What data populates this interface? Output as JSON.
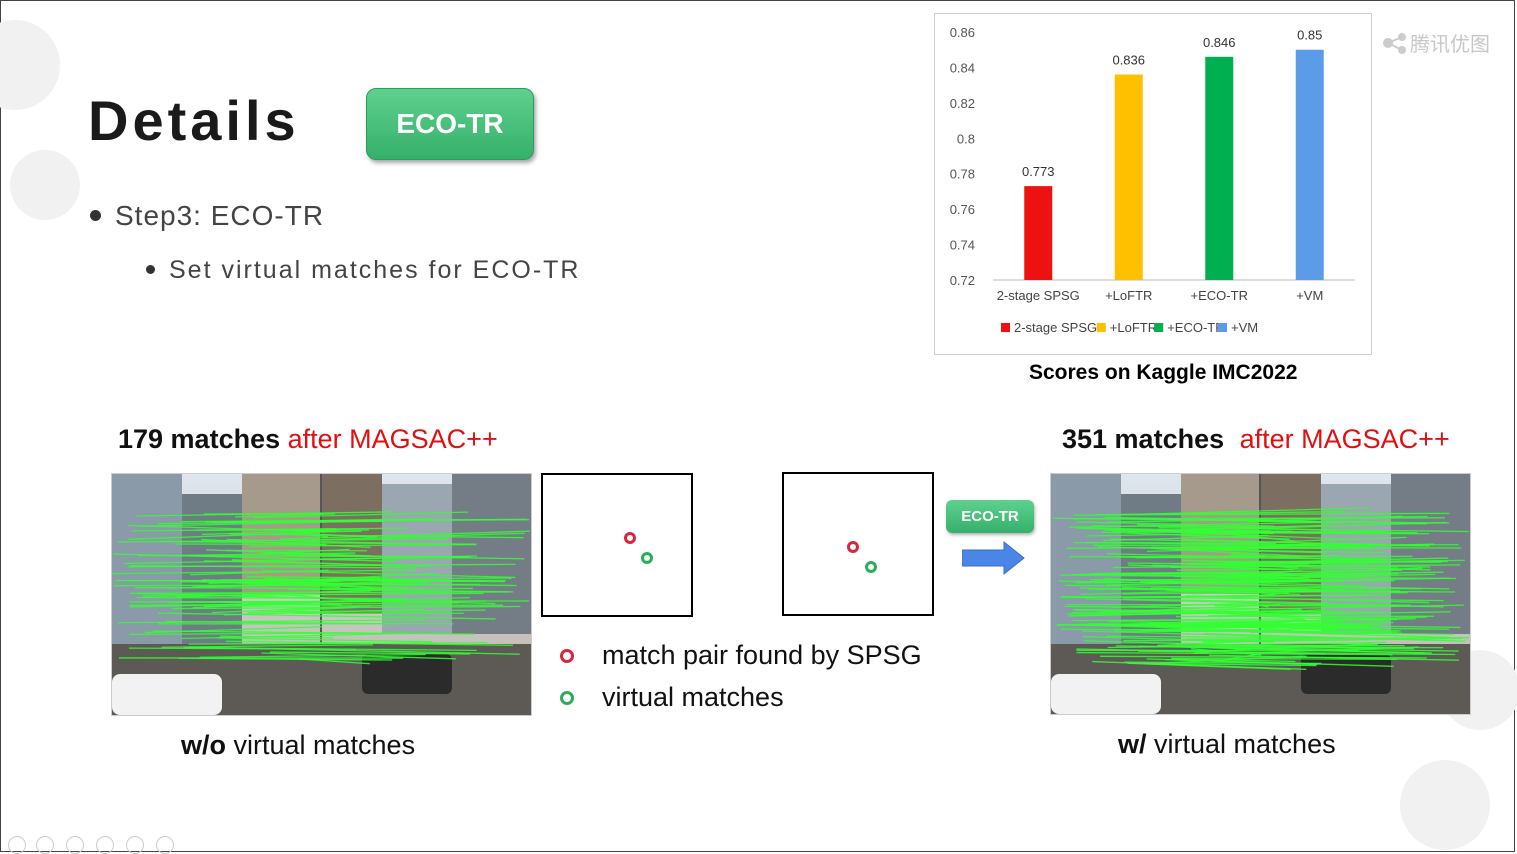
{
  "slide": {
    "title": "Details",
    "badge": "ECO-TR",
    "bullet1": "Step3: ECO-TR",
    "bullet2": "Set virtual matches for ECO-TR",
    "watermark": "腾讯优图",
    "chart_caption": "Scores on Kaggle IMC2022",
    "left_heading_count": "179  matches",
    "left_heading_suffix": "after MAGSAC++",
    "right_heading_count": "351 matches",
    "right_heading_suffix": "after MAGSAC++",
    "left_caption_bold": "w/o",
    "left_caption_rest": " virtual matches",
    "right_caption_bold": "w/",
    "right_caption_rest": " virtual matches",
    "legend_spsg": "match pair found by SPSG",
    "legend_virtual": "virtual matches",
    "arrow_badge": "ECO-TR",
    "colors": {
      "red_ring": "#d7263d",
      "green_ring": "#2bae5a",
      "accent_green": "#35b06b",
      "red_text": "#e01010"
    }
  },
  "chart_data": {
    "type": "bar",
    "categories": [
      "2-stage SPSG",
      "+LoFTR",
      "+ECO-TR",
      "+VM"
    ],
    "values": [
      0.773,
      0.836,
      0.846,
      0.85
    ],
    "value_labels": [
      "0.773",
      "0.836",
      "0.846",
      "0.85"
    ],
    "colors": [
      "#ee1111",
      "#ffc000",
      "#00b050",
      "#5b9be8"
    ],
    "ylim": [
      0.72,
      0.86
    ],
    "yticks": [
      "0.72",
      "0.74",
      "0.76",
      "0.78",
      "0.8",
      "0.82",
      "0.84",
      "0.86"
    ],
    "ytick_values": [
      0.72,
      0.74,
      0.76,
      0.78,
      0.8,
      0.82,
      0.84,
      0.86
    ],
    "legend": [
      "2-stage SPSG",
      "+LoFTR",
      "+ECO-TR",
      "+VM"
    ],
    "legend_position": "bottom",
    "grid": false,
    "title": "",
    "xlabel": "",
    "ylabel": ""
  }
}
